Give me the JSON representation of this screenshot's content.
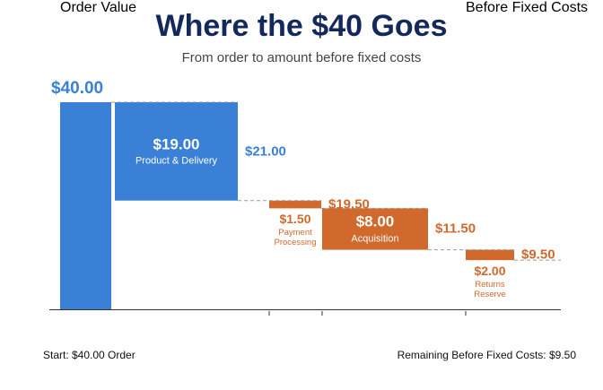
{
  "chart_data": {
    "type": "waterfall",
    "title": "Where the $40 Goes",
    "subtitle": "From order to amount before fixed costs",
    "categories": [
      "Order Value",
      null,
      null,
      null,
      "Before Fixed Costs"
    ],
    "names": [
      null,
      "Product & Delivery",
      "Payment Processing",
      "Acquisition",
      "Returns Reserve"
    ],
    "values": [
      40,
      19,
      1.5,
      8,
      2
    ],
    "value_labels": [
      "$40.00",
      "$19.00",
      "$1.50",
      "$8.00",
      "$2.00"
    ],
    "colors": [
      "#3a80d6",
      "#3a80d6",
      "#d2692c",
      "#d2692c",
      "#d2692c"
    ],
    "remaining": [
      null,
      {
        "value": 21,
        "label": "$21.00"
      },
      {
        "value": 19.5,
        "label": "$19.50"
      },
      {
        "value": 11.5,
        "label": "$11.50"
      },
      {
        "value": 9.5,
        "label": "$9.50"
      }
    ],
    "footer_left": "Start: $40.00 Order",
    "footer_right": "Remaining Before Fixed Costs: $9.50"
  }
}
